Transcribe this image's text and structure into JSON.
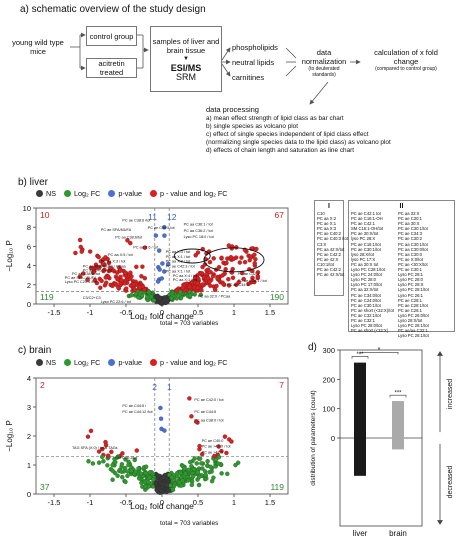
{
  "panel_a": {
    "title": "a) schematic overview of the study design",
    "mice_label": "young wild type mice",
    "group_control": "control group",
    "group_acitretin": "acitretin treated",
    "samples_label": "samples of liver and brain tissue",
    "method_main": "ESI/MS",
    "method_sub": "SRM",
    "lipid_classes": [
      "phospholipids",
      "neutral lipids",
      "carnitines"
    ],
    "normalization_label": "data normalization",
    "normalization_note": "(to deuterated standards)",
    "calculation_label": "calculation of x fold change",
    "calculation_note": "(compared to control group)",
    "processing_title": "data processing",
    "processing_items": [
      "a) mean effect strength of lipid class as bar chart",
      "b) single species as volcano plot",
      "c) effect of single species independent of lipid class effect",
      "    (normalizing single species data to the lipid class) as volcano plot",
      "d) effects of chain length and saturation as line chart"
    ]
  },
  "legend": {
    "ns": "NS",
    "log2fc": "Log₂ FC",
    "pvalue": "p-value",
    "both": "p - value and log₂ FC",
    "colors": {
      "ns": "#3a3a3a",
      "log2fc": "#2e9a2e",
      "pvalue": "#4a6fd6",
      "both": "#d91f1f"
    }
  },
  "panel_b": {
    "title": "b) liver",
    "ylabel": "−Log₁₀ P",
    "xlabel": "Log₂ fold change",
    "total": "total = 703 variables",
    "counts": {
      "top_left": "10",
      "top_right": "67",
      "bottom_left": "119",
      "bottom_right": "190",
      "blue_left": "11",
      "blue_right": "12"
    },
    "annotations": [
      "PC ae C38:6 /tot",
      "PC ae SFA/MUFA",
      "PC aa C38:6/tot",
      "PC ae C38:5 tot",
      "PC aa X:5 / tot",
      "PC aa X:3 / tot",
      "PC ae C40:0 / tot",
      "PC ae C38:5 /tot",
      "PC ae SFA / PUFA",
      "Lyso PC C20:4 /tot",
      "PC aa SFA/MUFA / PCaa",
      "PC aa X:6 / tot",
      "PC aa C36:1 / tot",
      "PC aa C36:2 / tot",
      "Lyso PC 18:0 / tot",
      "PC aa X:3 / tot",
      "PC aa X:1 / tot",
      "PC aa X:2 / tot",
      "PC ae C42:3 / tot",
      "PC aa X:1 / tot",
      "PC ae C28:1 / tot",
      "PC ae C34:3",
      "PC ae C32:1",
      "PC aa X:4 / tot",
      "PC aa X:1 / tot",
      "C3/C2+C3",
      "Lyso PC 22:6 / tot",
      "PC aa 32:X / PCaa",
      "PC ae C28:1 tot",
      "PC ae C26:1 tot"
    ]
  },
  "table": {
    "col1_header": "I",
    "col2_header": "II",
    "col1": [
      "C10",
      "PC aa X:2",
      "PC ae X:1",
      "PC aa X:3",
      "PC ae C40:2",
      "PC ae C40:3 /tot",
      "C3:X",
      "PC aa 42:X/tot",
      "PC ae C42:2",
      "PC ae 42:X",
      "C10:1/tot",
      "PC ae C42:2",
      "PC ae 42:X/tot"
    ],
    "col2a": [
      "PC ae C42:1 tot",
      "PC ae C16:1-OH",
      "PC ae C42:1",
      "SM C16:1-OH/tot",
      "PC ae 30:X/tot",
      "lyso PC 28:X",
      "PC ae C16:1/tot",
      "PC ae C30:1/tot",
      "lyso 28:X/tot",
      "lyso PC 17:X",
      "PC aa 30:X tot",
      "Lyso PC C28:1/tot",
      "Lyso PC 24:0/tot",
      "Lyso PC 28:0",
      "Lyso PC 17:0/tot",
      "PC aa 32:X/tot",
      "PC ae C34:0/tot",
      "PC ae C24:0/tot",
      "PC ae C30:1/tot",
      "PC ae short (<32:X)/tot",
      "PC ae C32:1/tot",
      "PC ae C32:1",
      "Lyso PC 28:0/tot",
      "PC ae short (<32:X)"
    ],
    "col2b": [
      "PC aa 32:X",
      "PC ae C30:1",
      "PC aa 30:X",
      "PC ae C30:1/tot",
      "PC ae C34:3",
      "PC ae C30:2",
      "PC aa C30:1/tot",
      "PC aa C30:0/tot",
      "PC aa C30:0",
      "PC ae X:0/tot",
      "PC ae <30:X/tot",
      "PC ae C30:1",
      "Lyso PC 28:1",
      "Lyso PC 28:0",
      "Lyso PC 28:X",
      "Lyso PC 28:1/tot",
      "Lyso PC 26:1",
      "PC ae C28:1",
      "PC ae C28:1/tot",
      "PC ae C26:1",
      "Lyso PC 26:0/tot",
      "Lyso 28:X/tot",
      "Lyso PC 28:1/tot",
      "PC ae/aa C32:1",
      "Lyso PC 28:1/tot"
    ]
  },
  "panel_c": {
    "title": "c) brain",
    "ylabel": "−Log₁₀ P",
    "xlabel": "Log₂ fold change",
    "total": "total = 703 variables",
    "counts": {
      "top_left": "2",
      "top_right": "7",
      "bottom_left": "37",
      "bottom_right": "119",
      "blue_left": "2",
      "blue_right": "1"
    },
    "annotations": [
      "PC ae C44:5 /",
      "PC ae C44:12 /tot",
      "PC ae C42:0 / tot",
      "PC ae C44:5",
      "PC aa C38:0 / tot",
      "PC ae C40:0",
      "PC ae >42:X / tot",
      "PC ae >42:X",
      "TAG SFA (X:0) / total TAGs",
      "SM C26:1/tot"
    ]
  },
  "panel_d": {
    "title": "d)",
    "ylabel": "distribution of parameters (count)",
    "label_increased": "increased",
    "label_decreased": "decreased",
    "sig_top": "*",
    "sig_liver": "***",
    "sig_brain": "***",
    "chart_data": {
      "type": "bar",
      "categories": [
        "liver",
        "brain"
      ],
      "series": [
        {
          "name": "increased",
          "values": [
            257,
            126
          ]
        },
        {
          "name": "decreased",
          "values": [
            -129,
            -39
          ]
        }
      ],
      "ylim": [
        -300,
        300
      ],
      "yticks": [
        300,
        200,
        100,
        0
      ]
    }
  }
}
